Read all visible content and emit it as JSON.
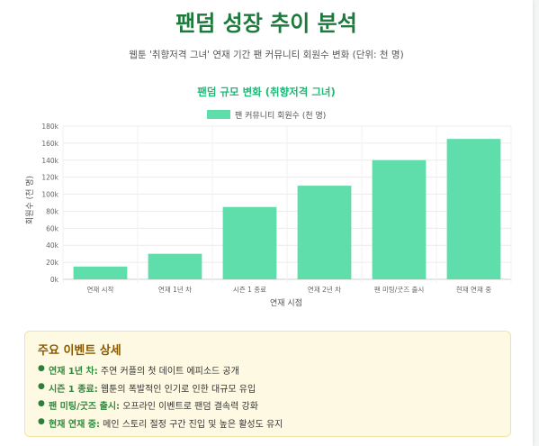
{
  "page": {
    "title": "팬덤 성장 추이 분석",
    "subtitle": "웹툰 '취향저격 그녀' 연재 기간 팬 커뮤니티 회원수 변화 (단위: 천 명)"
  },
  "chart_data": {
    "type": "bar",
    "title": "팬덤 규모 변화 (취향저격 그녀)",
    "xlabel": "연재 시점",
    "ylabel": "회원수 (천 명)",
    "categories": [
      "연재 시작",
      "연재 1년 차",
      "시즌 1 종료",
      "연재 2년 차",
      "팬 미팅/굿즈 출시",
      "현재 연재 중"
    ],
    "series": [
      {
        "name": "팬 커뮤니티 회원수 (천 명)",
        "values": [
          15,
          30,
          85,
          110,
          140,
          165
        ]
      }
    ],
    "ylim": [
      0,
      180
    ],
    "yticks": [
      "0k",
      "20k",
      "40k",
      "60k",
      "80k",
      "100k",
      "120k",
      "140k",
      "160k",
      "180k"
    ],
    "legend_position": "top-center",
    "grid": true,
    "colors": {
      "bar": "#5fddaa",
      "title": "#1fb877"
    }
  },
  "events": {
    "title": "주요 이벤트 상세",
    "items": [
      {
        "label": "연재 1년 차:",
        "text": " 주연 커플의 첫 데이트 에피소드 공개"
      },
      {
        "label": "시즌 1 종료:",
        "text": " 웹툰의 폭발적인 인기로 인한 대규모 유입"
      },
      {
        "label": "팬 미팅/굿즈 출시:",
        "text": " 오프라인 이벤트로 팬덤 결속력 강화"
      },
      {
        "label": "현재 연재 중:",
        "text": " 메인 스토리 절정 구간 진입 및 높은 활성도 유지"
      }
    ]
  }
}
